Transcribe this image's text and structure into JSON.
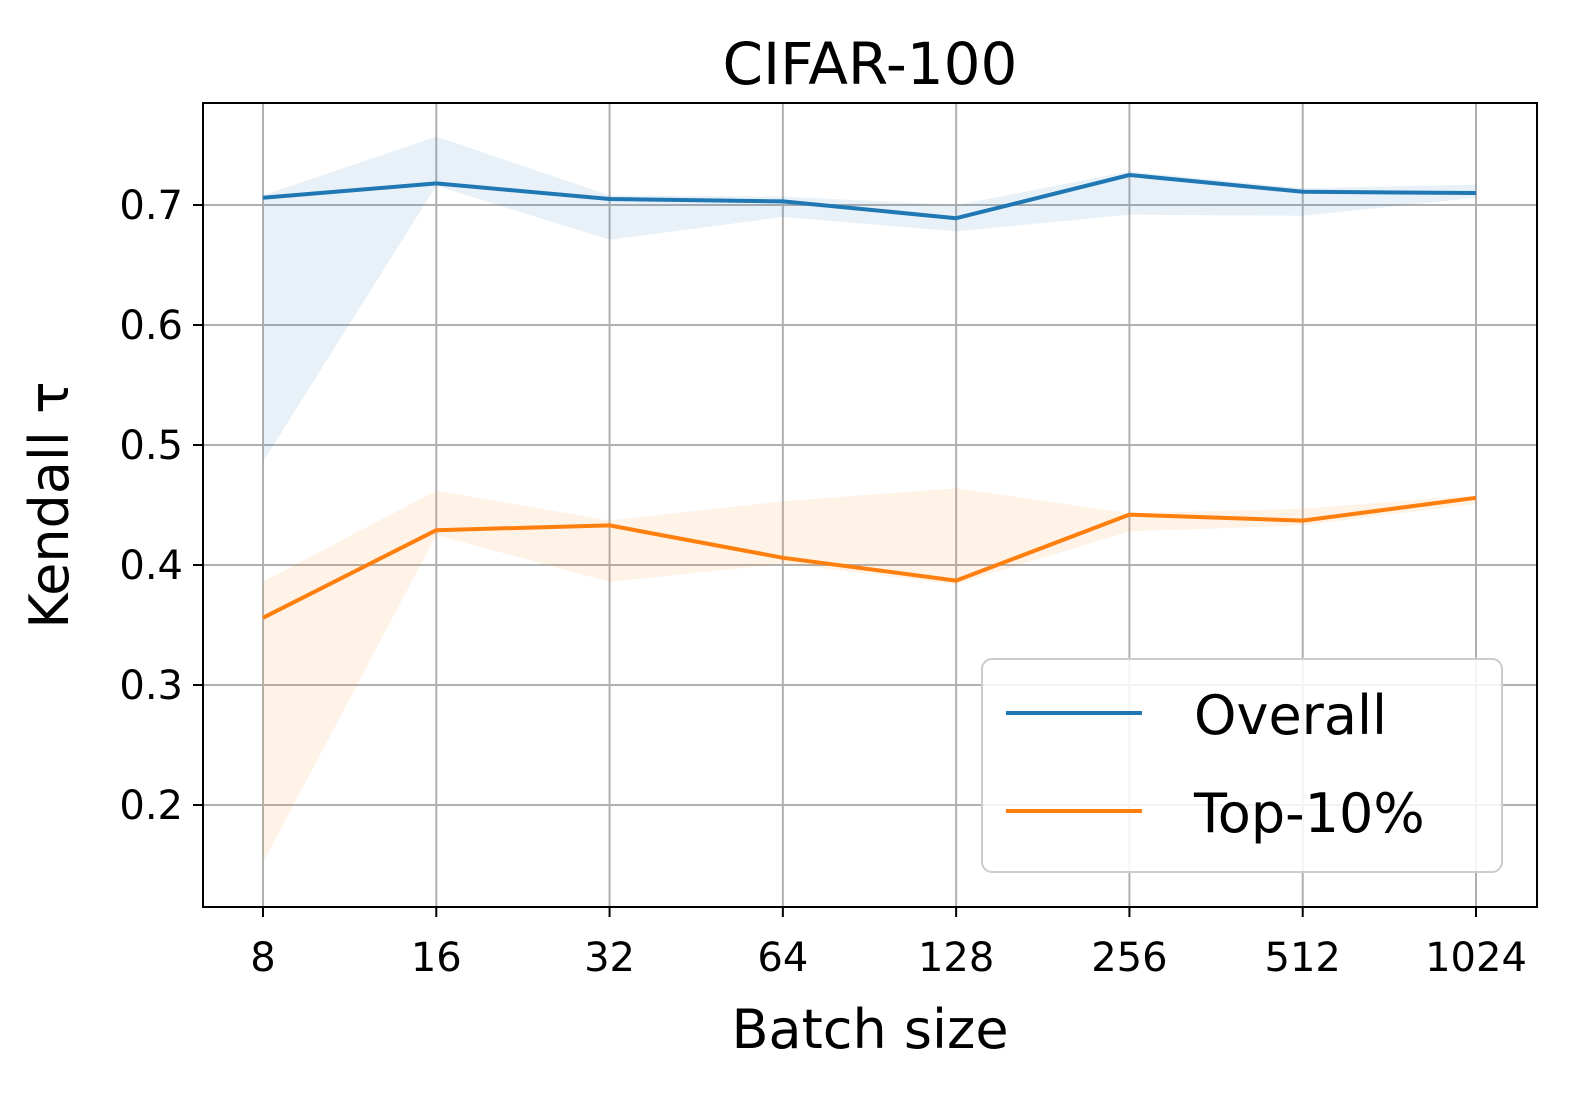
{
  "chart_data": {
    "type": "line",
    "title": "CIFAR-100",
    "xlabel": "Batch size",
    "ylabel": "Kendall τ",
    "categories": [
      "8",
      "16",
      "32",
      "64",
      "128",
      "256",
      "512",
      "1024"
    ],
    "ylim": [
      0.115,
      0.785
    ],
    "yticks": [
      0.2,
      0.3,
      0.4,
      0.5,
      0.6,
      0.7
    ],
    "ytick_labels": [
      "0.2",
      "0.3",
      "0.4",
      "0.5",
      "0.6",
      "0.7"
    ],
    "grid": true,
    "legend_position": "lower-right",
    "series": [
      {
        "name": "Overall",
        "color": "#1f77b4",
        "values": [
          0.706,
          0.718,
          0.705,
          0.703,
          0.689,
          0.725,
          0.711,
          0.71
        ],
        "band_upper": [
          0.708,
          0.757,
          0.708,
          0.707,
          0.7,
          0.728,
          0.714,
          0.717
        ],
        "band_lower": [
          0.486,
          0.716,
          0.671,
          0.69,
          0.678,
          0.692,
          0.691,
          0.706
        ]
      },
      {
        "name": "Top-10%",
        "color": "#ff7f0e",
        "values": [
          0.356,
          0.429,
          0.433,
          0.406,
          0.387,
          0.442,
          0.437,
          0.456
        ],
        "band_upper": [
          0.386,
          0.462,
          0.437,
          0.453,
          0.464,
          0.443,
          0.447,
          0.458
        ],
        "band_lower": [
          0.152,
          0.425,
          0.386,
          0.401,
          0.384,
          0.428,
          0.433,
          0.451
        ]
      }
    ]
  }
}
